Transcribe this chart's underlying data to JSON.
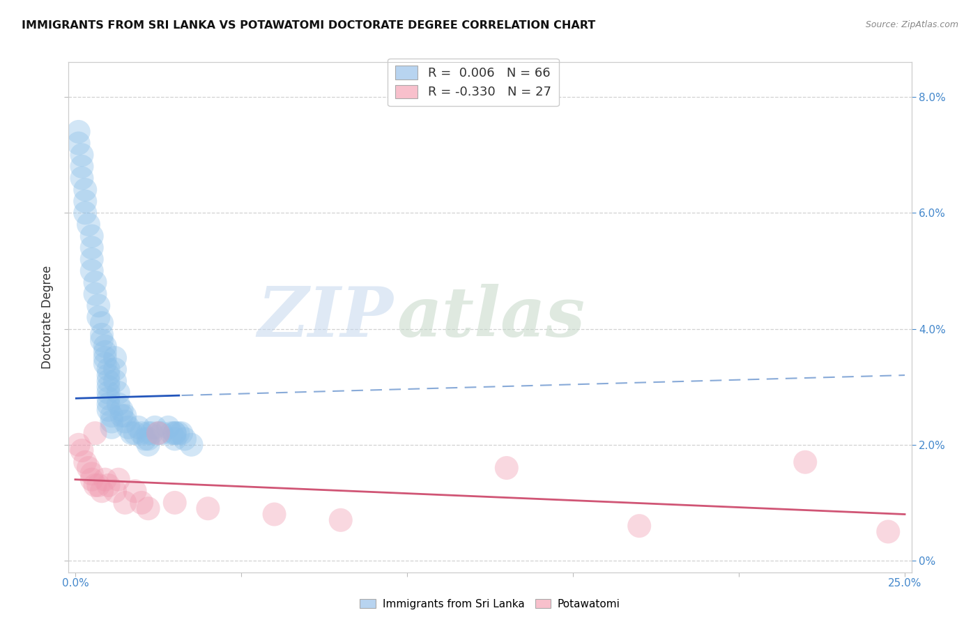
{
  "title": "IMMIGRANTS FROM SRI LANKA VS POTAWATOMI DOCTORATE DEGREE CORRELATION CHART",
  "source": "Source: ZipAtlas.com",
  "ylabel": "Doctorate Degree",
  "xlim": [
    -0.002,
    0.252
  ],
  "ylim": [
    -0.002,
    0.086
  ],
  "x_ticks": [
    0.0,
    0.05,
    0.1,
    0.15,
    0.2,
    0.25
  ],
  "y_ticks": [
    0.0,
    0.02,
    0.04,
    0.06,
    0.08
  ],
  "y_tick_labels_right": [
    "0%",
    "2.0%",
    "4.0%",
    "6.0%",
    "8.0%"
  ],
  "series1_color": "#8bbfe8",
  "series2_color": "#f09ab0",
  "trend1_solid_color": "#2255bb",
  "trend1_dash_color": "#88aad8",
  "trend2_color": "#d05575",
  "grid_color": "#cccccc",
  "legend1_patch": "#b8d4f0",
  "legend2_patch": "#f8c0cc",
  "legend1_R": "0.006",
  "legend1_N": "66",
  "legend2_R": "-0.330",
  "legend2_N": "27",
  "watermark_part1": "ZIP",
  "watermark_part2": "atlas",
  "watermark_color1": "#c8d8ee",
  "watermark_color2": "#c8d8c8",
  "background": "#ffffff",
  "dot_size": 600,
  "dot_alpha": 0.38,
  "sl_x": [
    0.001,
    0.001,
    0.002,
    0.002,
    0.002,
    0.003,
    0.003,
    0.003,
    0.004,
    0.005,
    0.005,
    0.005,
    0.005,
    0.006,
    0.006,
    0.007,
    0.007,
    0.008,
    0.008,
    0.008,
    0.009,
    0.009,
    0.009,
    0.009,
    0.01,
    0.01,
    0.01,
    0.01,
    0.01,
    0.01,
    0.01,
    0.01,
    0.011,
    0.011,
    0.011,
    0.012,
    0.012,
    0.012,
    0.013,
    0.013,
    0.014,
    0.014,
    0.015,
    0.015,
    0.016,
    0.017,
    0.018,
    0.019,
    0.02,
    0.021,
    0.022,
    0.022,
    0.022,
    0.023,
    0.024,
    0.025,
    0.026,
    0.028,
    0.029,
    0.03,
    0.03,
    0.03,
    0.031,
    0.032,
    0.033,
    0.035
  ],
  "sl_y": [
    0.074,
    0.072,
    0.07,
    0.068,
    0.066,
    0.064,
    0.062,
    0.06,
    0.058,
    0.056,
    0.054,
    0.052,
    0.05,
    0.048,
    0.046,
    0.044,
    0.042,
    0.041,
    0.039,
    0.038,
    0.037,
    0.036,
    0.035,
    0.034,
    0.033,
    0.032,
    0.031,
    0.03,
    0.029,
    0.028,
    0.027,
    0.026,
    0.025,
    0.024,
    0.023,
    0.035,
    0.033,
    0.031,
    0.029,
    0.027,
    0.026,
    0.025,
    0.025,
    0.024,
    0.023,
    0.022,
    0.022,
    0.023,
    0.022,
    0.021,
    0.022,
    0.021,
    0.02,
    0.022,
    0.023,
    0.022,
    0.022,
    0.023,
    0.022,
    0.022,
    0.022,
    0.021,
    0.022,
    0.022,
    0.021,
    0.02
  ],
  "pot_x": [
    0.001,
    0.002,
    0.003,
    0.004,
    0.005,
    0.005,
    0.006,
    0.006,
    0.007,
    0.008,
    0.009,
    0.01,
    0.012,
    0.013,
    0.015,
    0.018,
    0.02,
    0.022,
    0.025,
    0.03,
    0.04,
    0.06,
    0.08,
    0.13,
    0.17,
    0.22,
    0.245
  ],
  "pot_y": [
    0.02,
    0.019,
    0.017,
    0.016,
    0.015,
    0.014,
    0.013,
    0.022,
    0.013,
    0.012,
    0.014,
    0.013,
    0.012,
    0.014,
    0.01,
    0.012,
    0.01,
    0.009,
    0.022,
    0.01,
    0.009,
    0.008,
    0.007,
    0.016,
    0.006,
    0.017,
    0.005
  ],
  "trend1_solid_end_x": 0.032,
  "trend1_start_y": 0.028,
  "trend1_end_y_solid": 0.03,
  "trend1_end_y_dash": 0.032,
  "trend2_start_y": 0.014,
  "trend2_end_y": 0.008
}
